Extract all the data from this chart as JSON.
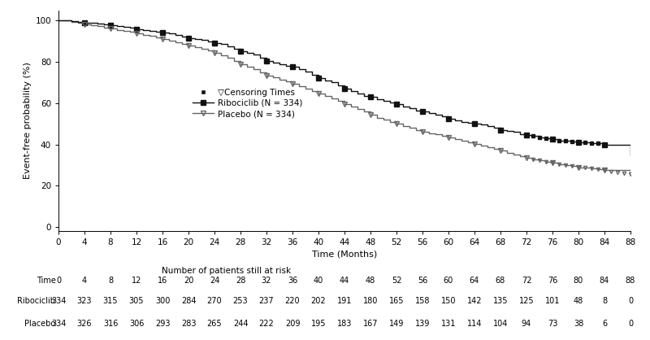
{
  "ylabel": "Event-free probability (%)",
  "xlabel": "Time (Months)",
  "xlim": [
    0,
    88
  ],
  "ylim": [
    -2,
    105
  ],
  "yticks": [
    0,
    20,
    40,
    60,
    80,
    100
  ],
  "xticks": [
    0,
    4,
    8,
    12,
    16,
    20,
    24,
    28,
    32,
    36,
    40,
    44,
    48,
    52,
    56,
    60,
    64,
    68,
    72,
    76,
    80,
    84,
    88
  ],
  "risk_table_times": [
    0,
    4,
    8,
    12,
    16,
    20,
    24,
    28,
    32,
    36,
    40,
    44,
    48,
    52,
    56,
    60,
    64,
    68,
    72,
    76,
    80,
    84,
    88
  ],
  "risk_ribo": [
    334,
    323,
    315,
    305,
    300,
    284,
    270,
    253,
    237,
    220,
    202,
    191,
    180,
    165,
    158,
    150,
    142,
    135,
    125,
    101,
    48,
    8,
    0
  ],
  "risk_placebo": [
    334,
    326,
    316,
    306,
    293,
    283,
    265,
    244,
    222,
    209,
    195,
    183,
    167,
    149,
    139,
    131,
    114,
    104,
    94,
    73,
    38,
    6,
    0
  ],
  "ribo_t": [
    0,
    1,
    2,
    3,
    4,
    5,
    6,
    7,
    8,
    9,
    10,
    11,
    12,
    13,
    14,
    15,
    16,
    17,
    18,
    19,
    20,
    21,
    22,
    23,
    24,
    25,
    26,
    27,
    28,
    29,
    30,
    31,
    32,
    33,
    34,
    35,
    36,
    37,
    38,
    39,
    40,
    41,
    42,
    43,
    44,
    45,
    46,
    47,
    48,
    49,
    50,
    51,
    52,
    53,
    54,
    55,
    56,
    57,
    58,
    59,
    60,
    61,
    62,
    63,
    64,
    65,
    66,
    67,
    68,
    69,
    70,
    71,
    72,
    73,
    74,
    75,
    76,
    77,
    78,
    79,
    80,
    81,
    82,
    83,
    84,
    88
  ],
  "ribo_s": [
    100,
    100,
    99.7,
    99.4,
    99.1,
    98.8,
    98.5,
    98.2,
    97.9,
    97.5,
    97.0,
    96.4,
    95.8,
    95.5,
    95.1,
    94.7,
    94.3,
    93.8,
    93.2,
    92.4,
    91.5,
    91.0,
    90.5,
    89.8,
    89.2,
    88.5,
    87.5,
    86.5,
    85.0,
    84.2,
    83.5,
    82.0,
    80.5,
    79.5,
    78.8,
    78.2,
    77.5,
    76.5,
    75.2,
    73.8,
    72.0,
    71.0,
    70.0,
    68.5,
    67.0,
    65.8,
    64.5,
    63.5,
    63.0,
    62.0,
    61.2,
    60.2,
    59.5,
    58.5,
    57.5,
    56.5,
    55.8,
    55.2,
    54.5,
    53.5,
    52.5,
    51.5,
    51.0,
    50.5,
    50.0,
    49.5,
    49.0,
    48.0,
    47.0,
    46.5,
    46.0,
    45.0,
    44.5,
    44.0,
    43.5,
    43.0,
    42.5,
    42.0,
    41.8,
    41.5,
    41.2,
    41.0,
    40.8,
    40.5,
    40.0,
    35.0
  ],
  "plac_t": [
    0,
    1,
    2,
    3,
    4,
    5,
    6,
    7,
    8,
    9,
    10,
    11,
    12,
    13,
    14,
    15,
    16,
    17,
    18,
    19,
    20,
    21,
    22,
    23,
    24,
    25,
    26,
    27,
    28,
    29,
    30,
    31,
    32,
    33,
    34,
    35,
    36,
    37,
    38,
    39,
    40,
    41,
    42,
    43,
    44,
    45,
    46,
    47,
    48,
    49,
    50,
    51,
    52,
    53,
    54,
    55,
    56,
    57,
    58,
    59,
    60,
    61,
    62,
    63,
    64,
    65,
    66,
    67,
    68,
    69,
    70,
    71,
    72,
    73,
    74,
    75,
    76,
    77,
    78,
    79,
    80,
    81,
    82,
    83,
    84,
    88
  ],
  "plac_s": [
    100,
    100,
    99.4,
    98.8,
    98.2,
    97.7,
    97.2,
    96.7,
    96.1,
    95.5,
    95.0,
    94.5,
    93.8,
    93.2,
    92.5,
    91.8,
    91.0,
    90.3,
    89.5,
    88.8,
    88.0,
    87.2,
    86.4,
    85.5,
    84.5,
    83.2,
    82.0,
    80.5,
    79.0,
    77.8,
    76.5,
    75.0,
    73.5,
    72.5,
    71.5,
    70.5,
    69.5,
    68.2,
    67.0,
    65.8,
    64.5,
    63.5,
    62.2,
    61.0,
    59.5,
    58.2,
    57.0,
    55.8,
    54.5,
    53.0,
    52.0,
    51.0,
    50.0,
    49.0,
    48.0,
    47.0,
    46.2,
    45.5,
    44.8,
    44.0,
    43.2,
    42.5,
    41.8,
    41.0,
    40.2,
    39.5,
    38.8,
    38.0,
    37.0,
    36.0,
    35.0,
    34.2,
    33.5,
    32.8,
    32.2,
    31.5,
    31.0,
    30.5,
    30.0,
    29.5,
    29.0,
    28.8,
    28.5,
    28.0,
    27.5,
    25.5
  ],
  "ribo_censor_t": [
    4,
    8,
    12,
    16,
    20,
    24,
    28,
    32,
    36,
    40,
    44,
    48,
    52,
    56,
    60,
    64,
    68,
    72,
    76,
    80,
    84
  ],
  "plac_censor_t": [
    4,
    8,
    12,
    16,
    20,
    24,
    28,
    32,
    36,
    40,
    44,
    48,
    52,
    56,
    60,
    64,
    68,
    72,
    76,
    80,
    84
  ],
  "dense_ribo_censor_t": [
    73,
    74,
    75,
    76,
    77,
    78,
    79,
    80,
    81,
    82,
    83,
    84
  ],
  "dense_plac_censor_t": [
    73,
    74,
    75,
    76,
    77,
    78,
    79,
    80,
    81,
    82,
    83,
    84,
    85,
    86,
    87,
    88
  ]
}
